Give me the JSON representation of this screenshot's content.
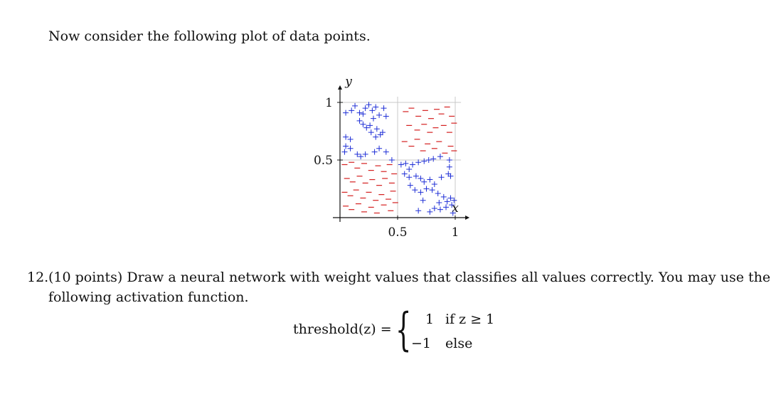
{
  "intro_text": "Now consider the following plot of data points.",
  "chart_data": {
    "type": "scatter",
    "title": "",
    "xlabel": "x",
    "ylabel": "y",
    "xlim": [
      0,
      1.05
    ],
    "ylim": [
      0,
      1.05
    ],
    "xticks": [
      "0.5",
      "1"
    ],
    "yticks": [
      "0.5",
      "1"
    ],
    "grid": true,
    "series": [
      {
        "marker": "+",
        "color": "#1f2fd6",
        "points": [
          [
            0.05,
            0.91
          ],
          [
            0.1,
            0.93
          ],
          [
            0.13,
            0.97
          ],
          [
            0.17,
            0.91
          ],
          [
            0.2,
            0.9
          ],
          [
            0.22,
            0.95
          ],
          [
            0.25,
            0.98
          ],
          [
            0.28,
            0.93
          ],
          [
            0.31,
            0.96
          ],
          [
            0.34,
            0.89
          ],
          [
            0.38,
            0.95
          ],
          [
            0.4,
            0.88
          ],
          [
            0.17,
            0.84
          ],
          [
            0.2,
            0.81
          ],
          [
            0.23,
            0.78
          ],
          [
            0.26,
            0.8
          ],
          [
            0.29,
            0.86
          ],
          [
            0.32,
            0.77
          ],
          [
            0.35,
            0.72
          ],
          [
            0.37,
            0.74
          ],
          [
            0.27,
            0.74
          ],
          [
            0.31,
            0.7
          ],
          [
            0.05,
            0.7
          ],
          [
            0.09,
            0.68
          ],
          [
            0.05,
            0.62
          ],
          [
            0.09,
            0.6
          ],
          [
            0.04,
            0.57
          ],
          [
            0.15,
            0.55
          ],
          [
            0.18,
            0.53
          ],
          [
            0.22,
            0.55
          ],
          [
            0.3,
            0.57
          ],
          [
            0.34,
            0.6
          ],
          [
            0.4,
            0.57
          ],
          [
            0.45,
            0.5
          ],
          [
            0.53,
            0.46
          ],
          [
            0.57,
            0.47
          ],
          [
            0.6,
            0.42
          ],
          [
            0.63,
            0.46
          ],
          [
            0.68,
            0.48
          ],
          [
            0.73,
            0.49
          ],
          [
            0.77,
            0.5
          ],
          [
            0.81,
            0.51
          ],
          [
            0.87,
            0.53
          ],
          [
            0.95,
            0.5
          ],
          [
            0.56,
            0.38
          ],
          [
            0.6,
            0.35
          ],
          [
            0.66,
            0.36
          ],
          [
            0.7,
            0.34
          ],
          [
            0.73,
            0.31
          ],
          [
            0.78,
            0.33
          ],
          [
            0.82,
            0.29
          ],
          [
            0.88,
            0.35
          ],
          [
            0.94,
            0.38
          ],
          [
            0.95,
            0.44
          ],
          [
            0.96,
            0.36
          ],
          [
            0.61,
            0.28
          ],
          [
            0.65,
            0.24
          ],
          [
            0.7,
            0.22
          ],
          [
            0.75,
            0.25
          ],
          [
            0.8,
            0.24
          ],
          [
            0.85,
            0.21
          ],
          [
            0.9,
            0.18
          ],
          [
            0.93,
            0.14
          ],
          [
            0.96,
            0.17
          ],
          [
            0.99,
            0.15
          ],
          [
            0.97,
            0.11
          ],
          [
            0.92,
            0.09
          ],
          [
            0.87,
            0.07
          ],
          [
            0.82,
            0.08
          ],
          [
            0.78,
            0.05
          ],
          [
            0.98,
            0.04
          ],
          [
            0.86,
            0.13
          ],
          [
            0.72,
            0.15
          ],
          [
            0.68,
            0.06
          ]
        ]
      },
      {
        "marker": "-",
        "color": "#d42020",
        "points": [
          [
            0.57,
            0.92
          ],
          [
            0.62,
            0.95
          ],
          [
            0.68,
            0.88
          ],
          [
            0.74,
            0.93
          ],
          [
            0.79,
            0.86
          ],
          [
            0.84,
            0.94
          ],
          [
            0.88,
            0.9
          ],
          [
            0.93,
            0.96
          ],
          [
            0.97,
            0.88
          ],
          [
            0.6,
            0.8
          ],
          [
            0.67,
            0.76
          ],
          [
            0.73,
            0.81
          ],
          [
            0.78,
            0.74
          ],
          [
            0.83,
            0.78
          ],
          [
            0.9,
            0.8
          ],
          [
            0.95,
            0.74
          ],
          [
            0.99,
            0.82
          ],
          [
            0.56,
            0.66
          ],
          [
            0.62,
            0.62
          ],
          [
            0.67,
            0.68
          ],
          [
            0.72,
            0.58
          ],
          [
            0.76,
            0.64
          ],
          [
            0.82,
            0.6
          ],
          [
            0.86,
            0.66
          ],
          [
            0.91,
            0.56
          ],
          [
            0.96,
            0.62
          ],
          [
            0.99,
            0.58
          ],
          [
            0.04,
            0.46
          ],
          [
            0.1,
            0.48
          ],
          [
            0.15,
            0.43
          ],
          [
            0.21,
            0.47
          ],
          [
            0.27,
            0.41
          ],
          [
            0.33,
            0.45
          ],
          [
            0.38,
            0.4
          ],
          [
            0.43,
            0.46
          ],
          [
            0.47,
            0.38
          ],
          [
            0.06,
            0.34
          ],
          [
            0.11,
            0.31
          ],
          [
            0.17,
            0.36
          ],
          [
            0.22,
            0.3
          ],
          [
            0.28,
            0.33
          ],
          [
            0.34,
            0.28
          ],
          [
            0.39,
            0.34
          ],
          [
            0.45,
            0.3
          ],
          [
            0.04,
            0.22
          ],
          [
            0.09,
            0.19
          ],
          [
            0.14,
            0.24
          ],
          [
            0.2,
            0.17
          ],
          [
            0.25,
            0.22
          ],
          [
            0.31,
            0.15
          ],
          [
            0.36,
            0.2
          ],
          [
            0.42,
            0.16
          ],
          [
            0.46,
            0.23
          ],
          [
            0.05,
            0.1
          ],
          [
            0.1,
            0.07
          ],
          [
            0.16,
            0.12
          ],
          [
            0.21,
            0.05
          ],
          [
            0.27,
            0.09
          ],
          [
            0.32,
            0.04
          ],
          [
            0.38,
            0.11
          ],
          [
            0.44,
            0.06
          ],
          [
            0.48,
            0.13
          ]
        ]
      }
    ]
  },
  "question": {
    "number": "12.",
    "line1": "(10 points) Draw a neural network with weight values that classifies all values correctly. You may use the",
    "line2": "following activation function."
  },
  "formula": {
    "lhs": "threshold(z) =",
    "case1_value": "1",
    "case1_condition": "if z ≥ 1",
    "case2_value": "−1",
    "case2_condition": "else"
  }
}
